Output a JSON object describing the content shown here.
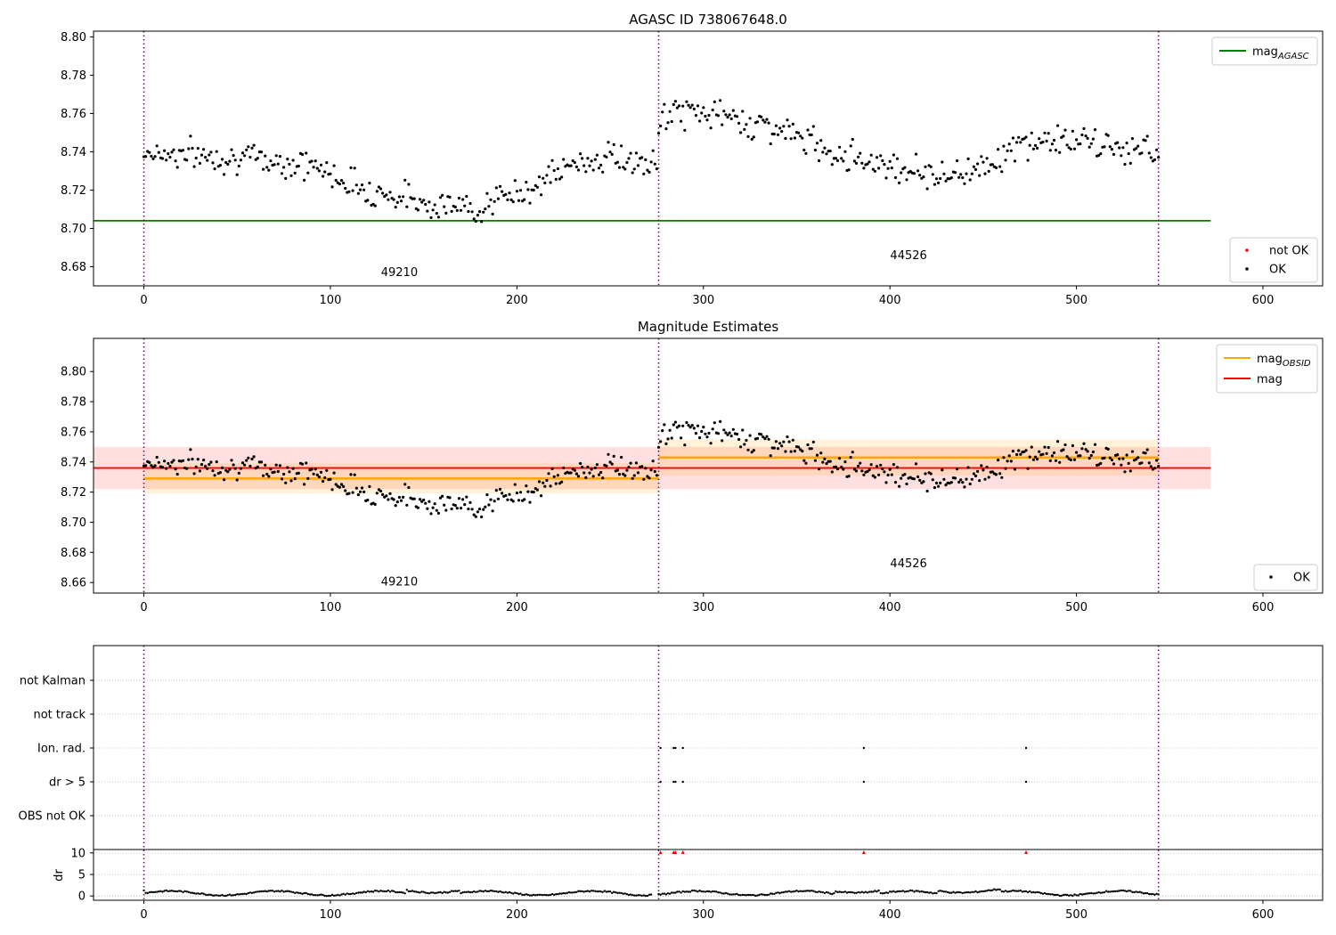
{
  "chart_data": [
    {
      "type": "scatter",
      "title": "AGASC ID 738067648.0",
      "xlim": [
        -27,
        632
      ],
      "ylim": [
        8.67,
        8.803
      ],
      "xticks": [
        0,
        100,
        200,
        300,
        400,
        500,
        600
      ],
      "yticks": [
        "8.68",
        "8.70",
        "8.72",
        "8.74",
        "8.76",
        "8.78",
        "8.80"
      ],
      "vlines": [
        0,
        276,
        544
      ],
      "segment_labels": [
        {
          "text": "49210",
          "x": 137,
          "y": 8.675
        },
        {
          "text": "44526",
          "x": 410,
          "y": 8.684
        }
      ],
      "hlines": [
        {
          "name": "mag_AGASC",
          "y": 8.704,
          "x": [
            -27,
            572
          ],
          "color": "#008000"
        }
      ],
      "legend_lines": [
        {
          "text": "mag",
          "sub": "AGASC",
          "color": "#008000"
        }
      ],
      "legend_points": [
        {
          "text": "not OK",
          "color": "#ff0000"
        },
        {
          "text": "OK",
          "color": "#000000"
        }
      ],
      "legend_position": "upper right, lower right"
    },
    {
      "type": "scatter",
      "title": "Magnitude Estimates",
      "xlim": [
        -27,
        632
      ],
      "ylim": [
        8.653,
        8.822
      ],
      "xticks": [
        0,
        100,
        200,
        300,
        400,
        500,
        600
      ],
      "yticks": [
        "8.66",
        "8.68",
        "8.70",
        "8.72",
        "8.74",
        "8.76",
        "8.78",
        "8.80"
      ],
      "vlines": [
        0,
        276,
        544
      ],
      "segment_labels": [
        {
          "text": "49210",
          "x": 137,
          "y": 8.658
        },
        {
          "text": "44526",
          "x": 410,
          "y": 8.67
        }
      ],
      "obsid_mags": [
        {
          "x": [
            0,
            276
          ],
          "mag": 8.729,
          "band": [
            8.719,
            8.739
          ],
          "color": "#ffa500"
        },
        {
          "x": [
            276,
            544
          ],
          "mag": 8.743,
          "band": [
            8.731,
            8.755
          ],
          "color": "#ffa500"
        }
      ],
      "overall_mag": {
        "x": [
          -27,
          572
        ],
        "mag": 8.736,
        "band": [
          8.722,
          8.75
        ],
        "color": "#ff0000"
      },
      "legend_lines": [
        {
          "text": "mag",
          "sub": "OBSID",
          "color": "#ffa500"
        },
        {
          "text": "mag",
          "sub": "",
          "color": "#ff0000"
        }
      ],
      "legend_points": [
        {
          "text": "OK",
          "color": "#000000"
        }
      ],
      "legend_position": "upper right, lower right"
    },
    {
      "type": "scatter",
      "title": "",
      "xlim": [
        -27,
        632
      ],
      "xticks": [
        0,
        100,
        200,
        300,
        400,
        500,
        600
      ],
      "vlines": [
        0,
        276,
        544
      ],
      "flag_categories": [
        "not Kalman",
        "not track",
        "Ion. rad.",
        "dr > 5",
        "OBS not OK"
      ],
      "flag_points": [
        {
          "category": "Ion. rad.",
          "x": [
            277,
            284,
            285,
            289,
            386,
            473
          ]
        },
        {
          "category": "dr > 5",
          "x": [
            277,
            284,
            285,
            289,
            386,
            473
          ]
        }
      ],
      "dr": {
        "ylabel": "dr",
        "yticks": [
          "0",
          "5",
          "10"
        ],
        "ylim": [
          -1,
          10.8
        ],
        "clipped_markers_x": [
          277,
          284,
          285,
          289,
          386,
          473
        ]
      }
    }
  ],
  "colors": {
    "ok": "#000000",
    "not_ok": "#ff0000",
    "grid": "#b0b0b0",
    "vline": "#800080"
  }
}
